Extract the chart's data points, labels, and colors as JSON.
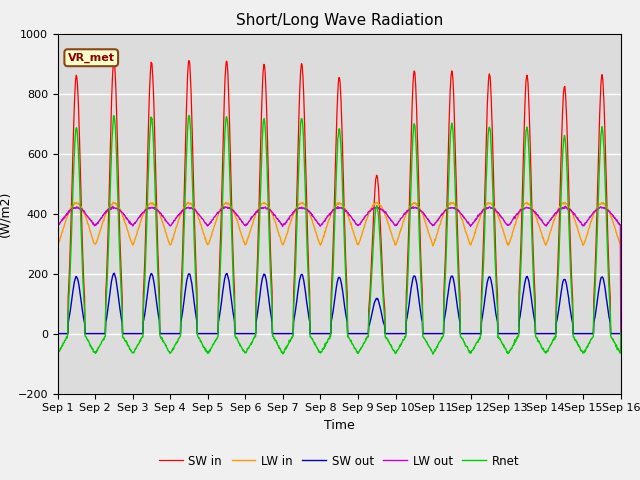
{
  "title": "Short/Long Wave Radiation",
  "xlabel": "Time",
  "ylabel": "(W/m2)",
  "ylim": [
    -200,
    1000
  ],
  "xlim": [
    0,
    15
  ],
  "yticks": [
    -200,
    0,
    200,
    400,
    600,
    800,
    1000
  ],
  "xtick_labels": [
    "Sep 1",
    "Sep 2",
    "Sep 3",
    "Sep 4",
    "Sep 5",
    "Sep 6",
    "Sep 7",
    "Sep 8",
    "Sep 9",
    "Sep 10",
    "Sep 11",
    "Sep 12",
    "Sep 13",
    "Sep 14",
    "Sep 15",
    "Sep 16"
  ],
  "series_colors": {
    "SW_in": "#ff0000",
    "LW_in": "#ff9900",
    "SW_out": "#0000cc",
    "LW_out": "#cc00cc",
    "Rnet": "#00cc00"
  },
  "series_labels": {
    "SW_in": "SW in",
    "LW_in": "LW in",
    "SW_out": "SW out",
    "LW_out": "LW out",
    "Rnet": "Rnet"
  },
  "annotation_text": "VR_met",
  "bg_color": "#dcdcdc",
  "fig_color": "#f0f0f0",
  "grid_color": "#ffffff",
  "title_fontsize": 11,
  "label_fontsize": 9,
  "tick_fontsize": 8,
  "sw_peaks": [
    860,
    910,
    905,
    910,
    908,
    900,
    900,
    855,
    530,
    875,
    875,
    865,
    860,
    825,
    860
  ],
  "lw_in_night": 295,
  "lw_in_day_extra": 140,
  "lw_out_night": 360,
  "lw_out_day_extra": 60,
  "rnet_night": -75
}
